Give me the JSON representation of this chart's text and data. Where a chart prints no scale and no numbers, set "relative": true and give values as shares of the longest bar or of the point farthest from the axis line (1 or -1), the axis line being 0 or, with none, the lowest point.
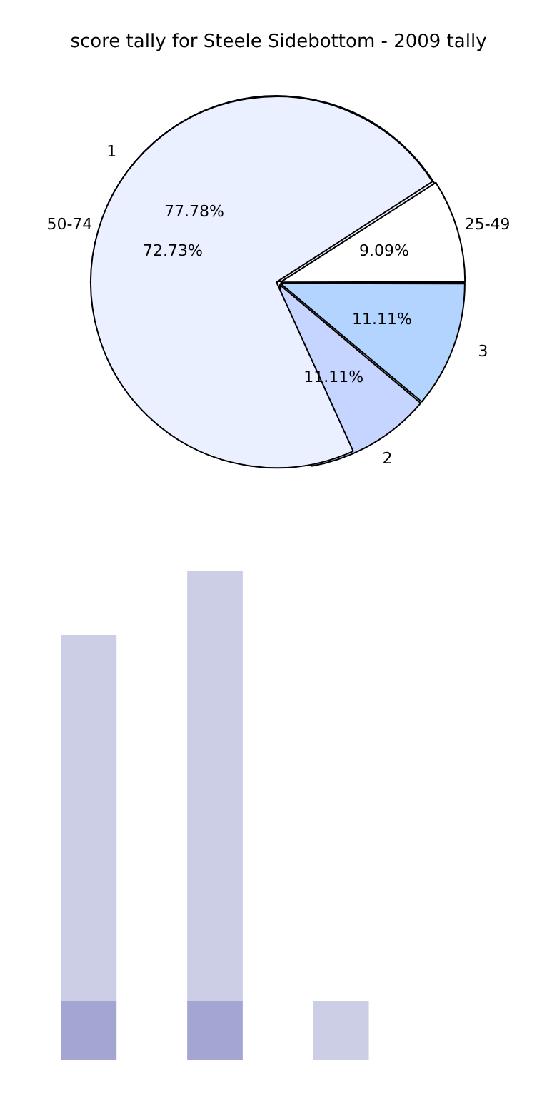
{
  "chart_data": [
    {
      "type": "pie",
      "title": "score tally for Steele Sidebottom - 2009 tally",
      "categories": [
        "25-49",
        "50-74"
      ],
      "values": [
        9.09,
        72.73
      ],
      "colors": [
        "#ffffff",
        "#eaf0ff"
      ],
      "value_labels": [
        "9.09%",
        "72.73%"
      ],
      "legend": false
    },
    {
      "type": "pie",
      "categories": [
        "1",
        "2",
        "3"
      ],
      "values": [
        77.78,
        11.11,
        11.11
      ],
      "colors": [
        "#eaf0ff",
        "#c5d5ff",
        "#b3d4ff"
      ],
      "value_labels": [
        "77.78%",
        "11.11%",
        "11.11%"
      ],
      "legend": false
    },
    {
      "type": "bar",
      "relative": true,
      "stacked": true,
      "categories": [
        null,
        null,
        null
      ],
      "series": [
        {
          "color": "#a3a6d1",
          "values": [
            0.12,
            0.12,
            0
          ]
        },
        {
          "color": "#cccee6",
          "values": [
            0.75,
            0.88,
            0.12
          ]
        }
      ],
      "legend": false
    }
  ]
}
